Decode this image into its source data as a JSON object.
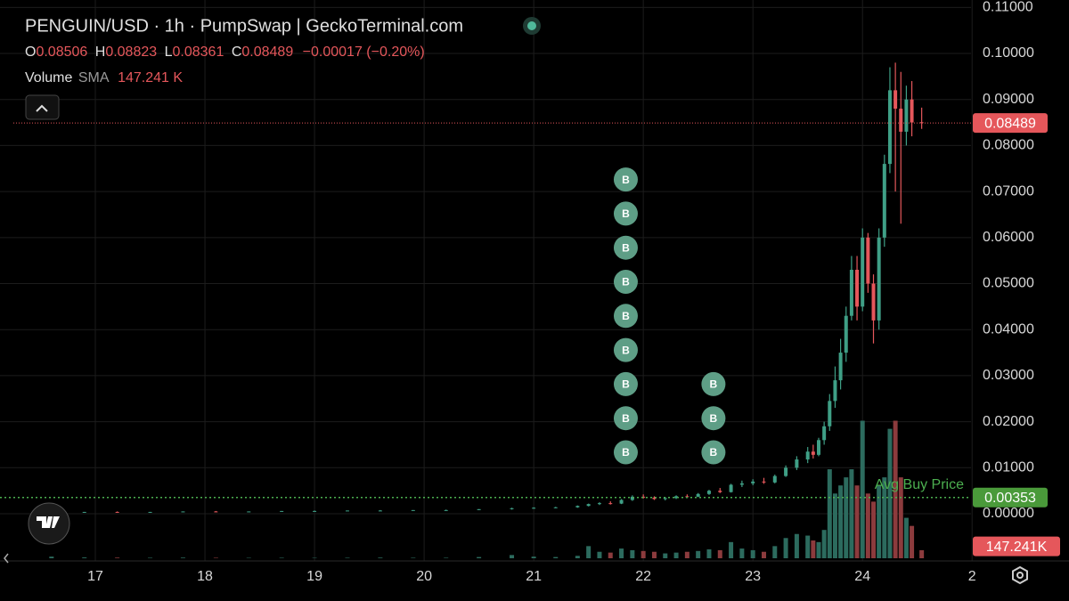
{
  "chart_data": {
    "type": "candlestick",
    "title": "PENGUIN/USD · 1h · PumpSwap | GeckoTerminal.com",
    "ohlc_labels": [
      "O",
      "H",
      "L",
      "C"
    ],
    "change_label": "−0.00017 (−0.20%)",
    "volume_label": "Volume",
    "sma_label": "SMA",
    "volume_sma_label": "147.241 K",
    "volume_sma_badge_label": "147.241K",
    "volume_sma": 147241,
    "avg_buy_label": "Avg Buy Price",
    "avg_buy_price": 0.00353,
    "buy_marker_label": "B",
    "buy_markers": [
      {
        "x": 21.84,
        "count": 9
      },
      {
        "x": 22.64,
        "count": 3
      }
    ],
    "up_color": "#3f9f86",
    "down_color": "#e5575b",
    "up_volume_color": "#2c6b5e",
    "down_volume_color": "#8c3b3d",
    "avg_color": "#4caf50",
    "grid": true,
    "xlim": [
      16.13,
      24.99
    ],
    "xticks": [
      17,
      18,
      19,
      20,
      21,
      22,
      23,
      24,
      {
        "value": 25,
        "label": "2"
      }
    ],
    "ylim": [
      -0.01025,
      0.11161
    ],
    "yticks": [
      {
        "value": 0,
        "label": "0.00000"
      },
      {
        "value": 0.01,
        "label": "0.01000"
      },
      {
        "value": 0.02,
        "label": "0.02000"
      },
      {
        "value": 0.03,
        "label": "0.03000"
      },
      {
        "value": 0.04,
        "label": "0.04000"
      },
      {
        "value": 0.05,
        "label": "0.05000"
      },
      {
        "value": 0.06,
        "label": "0.06000"
      },
      {
        "value": 0.07,
        "label": "0.07000"
      },
      {
        "value": 0.08,
        "label": "0.08000"
      },
      {
        "value": 0.09,
        "label": "0.09000"
      },
      {
        "value": 0.1,
        "label": "0.10000"
      },
      {
        "value": 0.11,
        "label": "0.11000"
      }
    ],
    "volume_lim": [
      0,
      6900000
    ],
    "candles": {
      "x": [
        16.6,
        16.9,
        17.2,
        17.5,
        17.8,
        18.1,
        18.4,
        18.7,
        19.0,
        19.3,
        19.6,
        19.9,
        20.2,
        20.5,
        20.8,
        21.0,
        21.2,
        21.4,
        21.5,
        21.6,
        21.7,
        21.8,
        21.9,
        22.0,
        22.1,
        22.2,
        22.3,
        22.4,
        22.5,
        22.6,
        22.7,
        22.8,
        22.9,
        23.0,
        23.1,
        23.2,
        23.3,
        23.4,
        23.5,
        23.55,
        23.6,
        23.65,
        23.7,
        23.75,
        23.8,
        23.85,
        23.9,
        23.95,
        24.0,
        24.05,
        24.1,
        24.15,
        24.2,
        24.25,
        24.3,
        24.35,
        24.4,
        24.45,
        24.54
      ],
      "open": [
        0.0003,
        0.0003,
        0.0004,
        0.0003,
        0.0004,
        0.0005,
        0.0004,
        0.0005,
        0.0006,
        0.0006,
        0.0007,
        0.0007,
        0.0008,
        0.0008,
        0.001,
        0.0012,
        0.0013,
        0.0014,
        0.0017,
        0.0021,
        0.0023,
        0.0022,
        0.003,
        0.0037,
        0.0035,
        0.0032,
        0.0034,
        0.0038,
        0.0037,
        0.0043,
        0.005,
        0.0047,
        0.0063,
        0.0066,
        0.007,
        0.0068,
        0.0082,
        0.01,
        0.0118,
        0.0135,
        0.0128,
        0.016,
        0.019,
        0.0245,
        0.029,
        0.035,
        0.043,
        0.053,
        0.045,
        0.06,
        0.05,
        0.042,
        0.06,
        0.076,
        0.092,
        0.088,
        0.083,
        0.09,
        0.08506
      ],
      "high": [
        0.0004,
        0.0004,
        0.0005,
        0.0004,
        0.0005,
        0.0006,
        0.0005,
        0.0006,
        0.0007,
        0.0007,
        0.0008,
        0.0008,
        0.0009,
        0.001,
        0.0013,
        0.0014,
        0.0015,
        0.0018,
        0.0022,
        0.0025,
        0.0027,
        0.0032,
        0.004,
        0.0042,
        0.0038,
        0.0036,
        0.004,
        0.0042,
        0.0045,
        0.0052,
        0.0056,
        0.0065,
        0.0072,
        0.0075,
        0.0078,
        0.0085,
        0.0105,
        0.0125,
        0.0145,
        0.015,
        0.0165,
        0.02,
        0.026,
        0.032,
        0.038,
        0.045,
        0.056,
        0.056,
        0.062,
        0.061,
        0.052,
        0.062,
        0.078,
        0.097,
        0.098,
        0.096,
        0.093,
        0.094,
        0.08823
      ],
      "low": [
        0.0002,
        0.0003,
        0.0003,
        0.0003,
        0.0004,
        0.0004,
        0.0004,
        0.0005,
        0.0005,
        0.0006,
        0.0006,
        0.0007,
        0.0007,
        0.0008,
        0.0009,
        0.0011,
        0.0012,
        0.0013,
        0.0016,
        0.0019,
        0.002,
        0.0021,
        0.0028,
        0.0033,
        0.003,
        0.0029,
        0.0032,
        0.0035,
        0.0036,
        0.0041,
        0.0045,
        0.0046,
        0.0058,
        0.0062,
        0.0065,
        0.0066,
        0.008,
        0.0095,
        0.011,
        0.012,
        0.0125,
        0.015,
        0.018,
        0.023,
        0.027,
        0.033,
        0.042,
        0.042,
        0.044,
        0.048,
        0.037,
        0.04,
        0.058,
        0.074,
        0.07,
        0.063,
        0.08,
        0.082,
        0.08361
      ],
      "close": [
        0.0003,
        0.0004,
        0.0003,
        0.0004,
        0.0005,
        0.0004,
        0.0005,
        0.0006,
        0.0006,
        0.0007,
        0.0007,
        0.0008,
        0.0008,
        0.001,
        0.0012,
        0.0013,
        0.0014,
        0.0017,
        0.0021,
        0.0023,
        0.0022,
        0.003,
        0.0037,
        0.0035,
        0.0032,
        0.0034,
        0.0038,
        0.0037,
        0.0043,
        0.005,
        0.0047,
        0.0063,
        0.0066,
        0.007,
        0.0068,
        0.0082,
        0.01,
        0.0118,
        0.0135,
        0.0128,
        0.016,
        0.019,
        0.0245,
        0.029,
        0.035,
        0.043,
        0.053,
        0.045,
        0.06,
        0.05,
        0.042,
        0.06,
        0.076,
        0.092,
        0.088,
        0.083,
        0.09,
        0.085,
        0.08489
      ],
      "volume": [
        20000,
        10000,
        8000,
        6000,
        8000,
        6000,
        5000,
        6000,
        5000,
        6000,
        8000,
        6000,
        6000,
        15000,
        40000,
        20000,
        15000,
        30000,
        150000,
        80000,
        70000,
        120000,
        100000,
        90000,
        80000,
        60000,
        70000,
        80000,
        90000,
        110000,
        100000,
        200000,
        120000,
        100000,
        80000,
        150000,
        250000,
        300000,
        280000,
        220000,
        200000,
        350000,
        1100000,
        800000,
        900000,
        1000000,
        1100000,
        900000,
        1700000,
        800000,
        700000,
        900000,
        1000000,
        1600000,
        1700000,
        1000000,
        500000,
        400000,
        100000
      ]
    }
  }
}
